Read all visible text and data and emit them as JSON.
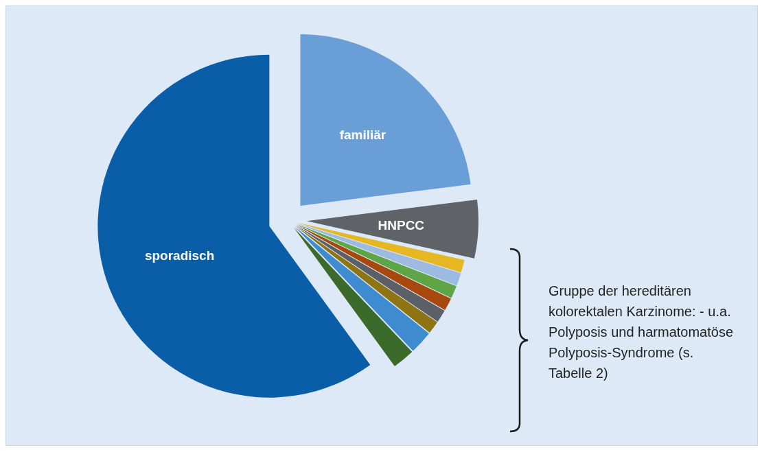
{
  "chart_data": {
    "type": "pie",
    "categories": [
      "familiär",
      "HNPCC",
      null,
      null,
      null,
      null,
      null,
      null,
      null,
      null,
      "sporadisch"
    ],
    "values": [
      23,
      5.5,
      1.2,
      1.2,
      1.2,
      1.2,
      1.2,
      1.2,
      2.2,
      2.1,
      60
    ],
    "colors": [
      "#6a9ed6",
      "#5f6368",
      "#e5b823",
      "#9dbbe0",
      "#5ea545",
      "#a7490f",
      "#5b5f66",
      "#8e7413",
      "#3f8bd0",
      "#3c6a2a",
      "#0a5ea8"
    ],
    "annotations": [
      "Gruppe der hereditären kolorektalen Karzinome: - u.a. Polyposis und harmatomatöse Polyposis-Syndrome (s. Tabelle 2)"
    ],
    "legend": false
  }
}
